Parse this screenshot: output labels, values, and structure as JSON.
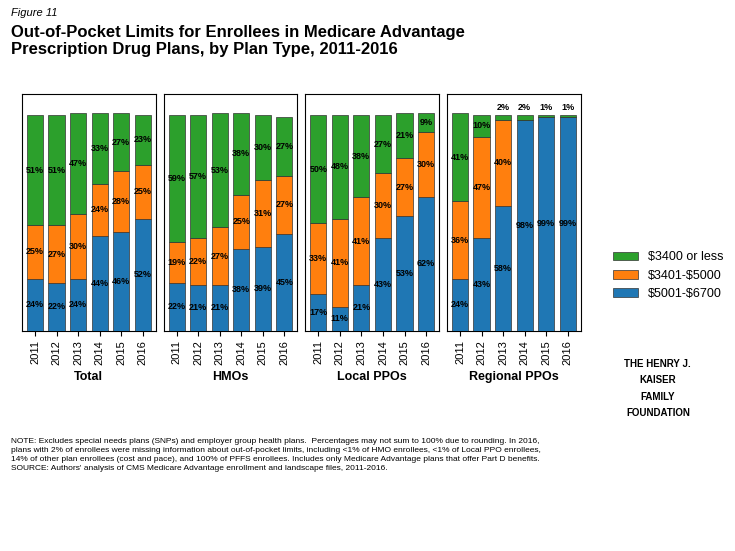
{
  "chart_data": [
    {
      "type": "bar",
      "stacked": true,
      "data_labels": true,
      "tick_labels": "x",
      "label": "Figure 11",
      "title": "Out-of-Pocket Limits for Enrollees in Medicare Advantage\nPrescription Drug Plans, by Plan Type, 2011-2016",
      "note": "NOTE: Excludes special needs plans (SNPs) and employer group health plans.  Percentages may not sum to 100% due to rounding. In 2016,\nplans with 2% of enrollees were missing information about out-of-pocket limits, including <1% of HMO enrollees, <1% of Local PPO enrollees,\n14% of other plan enrollees (cost and pace), and 100% of PFFS enrollees. Includes only Medicare Advantage plans that offer Part D benefits.\nSOURCE: Authors' analysis of CMS Medicare Advantage enrollment and landscape files, 2011-2016.",
      "logo": [
        "THE HENRY J.",
        "KAISER",
        "FAMILY",
        "FOUNDATION"
      ],
      "x_label": "Total",
      "categories": [
        "2011",
        "2012",
        "2013",
        "2014",
        "2015",
        "2016"
      ],
      "ylim": [
        0,
        110
      ],
      "series": [
        {
          "name": "$5001-$6700",
          "values": [
            24,
            22,
            24,
            44,
            46,
            52
          ],
          "value_labels": [
            "24%",
            "22%",
            "24%",
            "44%",
            "46%",
            "52%"
          ]
        },
        {
          "name": "$3401-$5000",
          "values": [
            25,
            27,
            30,
            24,
            28,
            25
          ],
          "value_labels": [
            "25%",
            "27%",
            "30%",
            "24%",
            "28%",
            "25%"
          ]
        },
        {
          "name": "$3400 or less",
          "values": [
            51,
            51,
            47,
            33,
            27,
            23
          ],
          "value_labels": [
            "51%",
            "51%",
            "47%",
            "33%",
            "27%",
            "23%"
          ]
        }
      ]
    },
    {
      "type": "bar",
      "stacked": true,
      "data_labels": true,
      "tick_labels": "x",
      "x_label": "HMOs",
      "categories": [
        "2011",
        "2012",
        "2013",
        "2014",
        "2015",
        "2016"
      ],
      "ylim": [
        0,
        110
      ],
      "series": [
        {
          "name": "$5001-$6700",
          "values": [
            22,
            21,
            21,
            38,
            39,
            45
          ],
          "value_labels": [
            "22%",
            "21%",
            "21%",
            "38%",
            "39%",
            "45%"
          ]
        },
        {
          "name": "$3401-$5000",
          "values": [
            19,
            22,
            27,
            25,
            31,
            27
          ],
          "value_labels": [
            "19%",
            "22%",
            "27%",
            "25%",
            "31%",
            "27%"
          ]
        },
        {
          "name": "$3400 or less",
          "values": [
            59,
            57,
            53,
            38,
            30,
            27
          ],
          "value_labels": [
            "59%",
            "57%",
            "53%",
            "38%",
            "30%",
            "27%"
          ]
        }
      ]
    },
    {
      "type": "bar",
      "stacked": true,
      "data_labels": true,
      "tick_labels": "x",
      "x_label": "Local PPOs",
      "categories": [
        "2011",
        "2012",
        "2013",
        "2014",
        "2015",
        "2016"
      ],
      "ylim": [
        0,
        110
      ],
      "series": [
        {
          "name": "$5001-$6700",
          "values": [
            17,
            11,
            21,
            43,
            53,
            62
          ],
          "value_labels": [
            "17%",
            "11%",
            "21%",
            "43%",
            "53%",
            "62%"
          ]
        },
        {
          "name": "$3401-$5000",
          "values": [
            33,
            41,
            41,
            30,
            27,
            30
          ],
          "value_labels": [
            "33%",
            "41%",
            "41%",
            "30%",
            "27%",
            "30%"
          ]
        },
        {
          "name": "$3400 or less",
          "values": [
            50,
            48,
            38,
            27,
            21,
            9
          ],
          "value_labels": [
            "50%",
            "48%",
            "38%",
            "27%",
            "21%",
            "9%"
          ]
        }
      ]
    },
    {
      "type": "bar",
      "stacked": true,
      "data_labels": true,
      "tick_labels": "x",
      "legend": "center right",
      "x_label": "Regional PPOs",
      "categories": [
        "2011",
        "2012",
        "2013",
        "2014",
        "2015",
        "2016"
      ],
      "ylim": [
        0,
        110
      ],
      "series": [
        {
          "name": "$5001-$6700",
          "values": [
            24,
            43,
            58,
            98,
            99,
            99
          ],
          "value_labels": [
            "24%",
            "43%",
            "58%",
            "98%",
            "99%",
            "99%"
          ]
        },
        {
          "name": "$3401-$5000",
          "values": [
            36,
            47,
            40,
            0,
            0,
            0
          ],
          "value_labels": [
            "36%",
            "47%",
            "40%",
            null,
            null,
            null
          ]
        },
        {
          "name": "$3400 or less",
          "values": [
            41,
            10,
            2,
            2,
            1,
            1
          ],
          "value_labels": [
            "41%",
            "10%",
            "2%",
            "2%",
            "1%",
            "1%"
          ]
        }
      ]
    }
  ]
}
